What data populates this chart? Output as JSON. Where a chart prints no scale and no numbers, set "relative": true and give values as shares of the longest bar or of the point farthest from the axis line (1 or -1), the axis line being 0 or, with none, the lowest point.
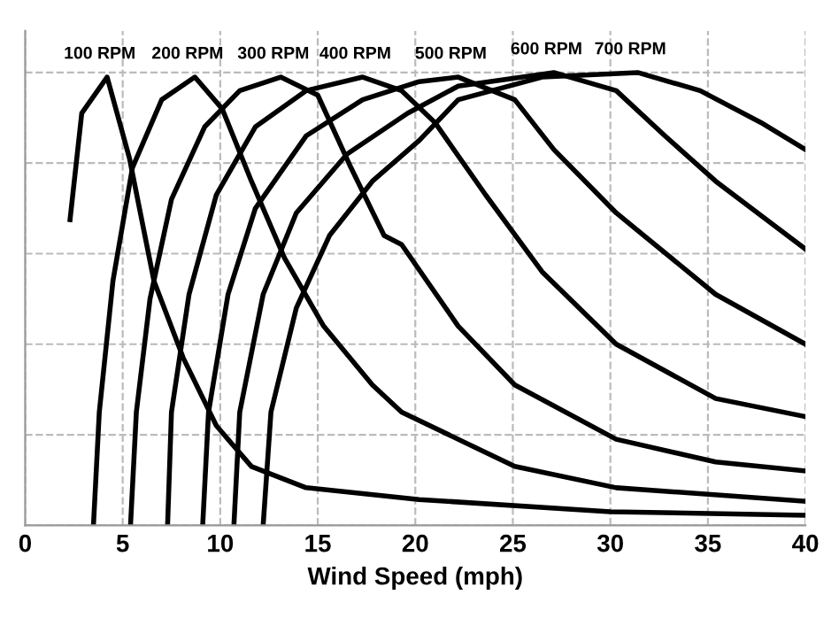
{
  "chart_data": {
    "type": "line",
    "relative": true,
    "xlabel": "Wind Speed (mph)",
    "xlim": [
      0,
      40
    ],
    "xticks": [
      0,
      5,
      10,
      15,
      20,
      25,
      30,
      35,
      40
    ],
    "tick_labels": "x",
    "grid": true,
    "legend": false,
    "marker": "none",
    "line_style": "solid",
    "series": [
      {
        "name": "100 RPM",
        "color": "#000000",
        "x": [
          2.3,
          2.9,
          4.2,
          5.35,
          6.6,
          8.1,
          9.8,
          11.6,
          14.4,
          20.2,
          30,
          40
        ],
        "values": [
          0.675,
          0.91,
          0.99,
          0.81,
          0.54,
          0.37,
          0.22,
          0.13,
          0.083,
          0.057,
          0.03,
          0.022
        ]
      },
      {
        "name": "200 RPM",
        "color": "#000000",
        "x": [
          3.5,
          3.8,
          4.5,
          5.5,
          7,
          8.7,
          10.1,
          11.6,
          13.3,
          15.3,
          17.8,
          19.3,
          25.1,
          30.3,
          40
        ],
        "values": [
          0,
          0.25,
          0.54,
          0.79,
          0.94,
          0.99,
          0.92,
          0.76,
          0.59,
          0.44,
          0.31,
          0.25,
          0.13,
          0.083,
          0.053
        ]
      },
      {
        "name": "300 RPM",
        "color": "#000000",
        "x": [
          5.4,
          5.7,
          6.4,
          7.5,
          9.2,
          11,
          13.1,
          15,
          16.7,
          18.4,
          19.3,
          22.2,
          25.1,
          30.3,
          35.4,
          40
        ],
        "values": [
          0,
          0.25,
          0.5,
          0.72,
          0.88,
          0.96,
          0.99,
          0.95,
          0.79,
          0.64,
          0.62,
          0.44,
          0.31,
          0.19,
          0.14,
          0.12
        ]
      },
      {
        "name": "400 RPM",
        "color": "#000000",
        "x": [
          7.3,
          7.5,
          8.4,
          9.8,
          11.8,
          14.4,
          17.3,
          19.3,
          21,
          23.6,
          26.5,
          30.3,
          35.4,
          40
        ],
        "values": [
          0,
          0.25,
          0.51,
          0.73,
          0.88,
          0.96,
          0.99,
          0.96,
          0.89,
          0.73,
          0.56,
          0.4,
          0.28,
          0.24
        ]
      },
      {
        "name": "500 RPM",
        "color": "#000000",
        "x": [
          9.1,
          9.4,
          10.4,
          11.8,
          14.4,
          17.3,
          20.2,
          22.2,
          25.1,
          27.1,
          30.3,
          35.4,
          40
        ],
        "values": [
          0,
          0.25,
          0.51,
          0.7,
          0.86,
          0.94,
          0.98,
          0.99,
          0.94,
          0.83,
          0.69,
          0.51,
          0.4
        ]
      },
      {
        "name": "600 RPM",
        "color": "#000000",
        "x": [
          10.7,
          11,
          12.2,
          13.9,
          16.5,
          19.6,
          22.2,
          27.1,
          30.3,
          32.8,
          35.4,
          40
        ],
        "values": [
          0,
          0.25,
          0.51,
          0.69,
          0.82,
          0.91,
          0.97,
          1.0,
          0.96,
          0.86,
          0.76,
          0.61
        ]
      },
      {
        "name": "700 RPM",
        "color": "#000000",
        "x": [
          12.2,
          12.6,
          13.9,
          15.6,
          17.8,
          20.2,
          22.2,
          26.5,
          31.4,
          34.6,
          37.7,
          40
        ],
        "values": [
          0,
          0.25,
          0.48,
          0.64,
          0.76,
          0.85,
          0.94,
          0.99,
          1.0,
          0.96,
          0.89,
          0.83
        ]
      }
    ]
  }
}
